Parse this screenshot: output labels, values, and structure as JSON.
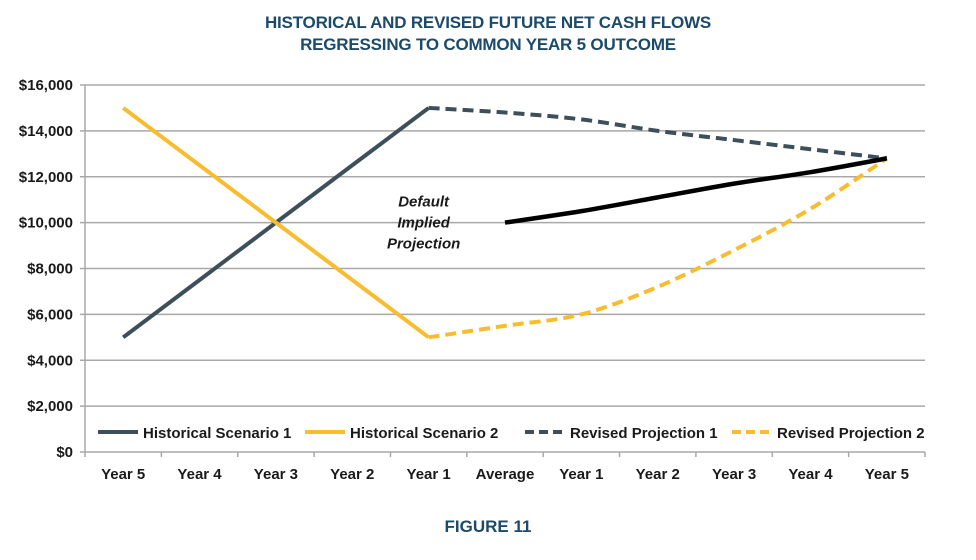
{
  "figure_label": "FIGURE 11",
  "chart_data": {
    "type": "line",
    "title_lines": [
      "HISTORICAL AND REVISED FUTURE NET CASH FLOWS",
      "REGRESSING TO COMMON YEAR 5 OUTCOME"
    ],
    "xlabel": "",
    "ylabel": "",
    "categories": [
      "Year 5",
      "Year 4",
      "Year 3",
      "Year 2",
      "Year 1",
      "Average",
      "Year 1",
      "Year 2",
      "Year 3",
      "Year 4",
      "Year 5"
    ],
    "ylim": [
      0,
      16000
    ],
    "yticks": [
      0,
      2000,
      4000,
      6000,
      8000,
      10000,
      12000,
      14000,
      16000
    ],
    "ytick_labels": [
      "$0",
      "$2,000",
      "$4,000",
      "$6,000",
      "$8,000",
      "$10,000",
      "$12,000",
      "$14,000",
      "$16,000"
    ],
    "grid": true,
    "legend_position": "bottom-inside",
    "series": [
      {
        "name": "Historical Scenario 1",
        "color": "#3d4f5a",
        "style": "solid",
        "values": [
          5000,
          7500,
          10000,
          12500,
          15000,
          null,
          null,
          null,
          null,
          null,
          null
        ]
      },
      {
        "name": "Historical Scenario 2",
        "color": "#f8bc2e",
        "style": "solid",
        "values": [
          15000,
          12500,
          10000,
          7500,
          5000,
          null,
          null,
          null,
          null,
          null,
          null
        ]
      },
      {
        "name": "Revised Projection 1",
        "color": "#3d4f5a",
        "style": "dashed",
        "values": [
          null,
          null,
          null,
          null,
          15000,
          14800,
          14500,
          14000,
          13600,
          13200,
          12800
        ]
      },
      {
        "name": "Revised Projection 2",
        "color": "#f8bc2e",
        "style": "dashed",
        "values": [
          null,
          null,
          null,
          null,
          5000,
          5500,
          6000,
          7200,
          8800,
          10600,
          12800
        ]
      },
      {
        "name": "Default Implied Projection",
        "color": "#000000",
        "style": "solid",
        "in_legend": false,
        "values": [
          null,
          null,
          null,
          null,
          null,
          10000,
          10500,
          11100,
          11700,
          12200,
          12800
        ]
      }
    ],
    "annotations": [
      {
        "text_lines": [
          "Default",
          "Implied",
          "Projection"
        ],
        "near_category": "Average",
        "near_value": 10000
      }
    ]
  }
}
